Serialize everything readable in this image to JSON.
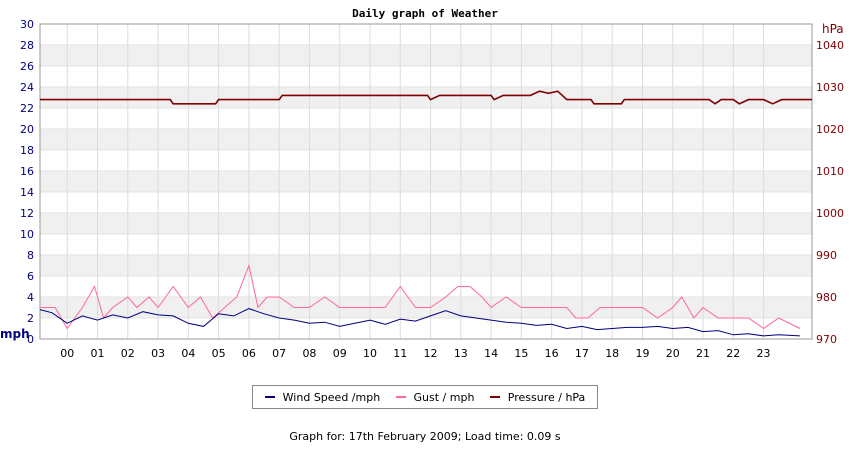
{
  "chart_data": {
    "type": "line",
    "title": "Daily graph of Weather",
    "y_left": {
      "unit": "mph",
      "min": 0,
      "max": 30,
      "ticks": [
        0,
        2,
        4,
        6,
        8,
        10,
        12,
        14,
        16,
        18,
        20,
        22,
        24,
        26,
        28,
        30
      ]
    },
    "y_right": {
      "unit": "hPa",
      "min": 970,
      "max": 1045,
      "ticks": [
        970,
        980,
        990,
        1000,
        1010,
        1020,
        1030,
        1040
      ]
    },
    "x_ticks": [
      "00",
      "01",
      "02",
      "03",
      "04",
      "05",
      "06",
      "07",
      "08",
      "09",
      "10",
      "11",
      "12",
      "13",
      "14",
      "15",
      "16",
      "17",
      "18",
      "19",
      "20",
      "21",
      "22",
      "23"
    ],
    "x_range_hours": [
      -0.9,
      24.6
    ],
    "grid": true,
    "legend_position": "bottom",
    "series": [
      {
        "name": "Wind Speed /mph",
        "color": "#00007f",
        "axis": "left",
        "points": [
          [
            -0.9,
            2.8
          ],
          [
            -0.5,
            2.5
          ],
          [
            0,
            1.5
          ],
          [
            0.5,
            2.2
          ],
          [
            1.0,
            1.8
          ],
          [
            1.5,
            2.3
          ],
          [
            2.0,
            2.0
          ],
          [
            2.5,
            2.6
          ],
          [
            3.0,
            2.3
          ],
          [
            3.5,
            2.2
          ],
          [
            4.0,
            1.5
          ],
          [
            4.5,
            1.2
          ],
          [
            5.0,
            2.4
          ],
          [
            5.5,
            2.2
          ],
          [
            6.0,
            2.9
          ],
          [
            6.5,
            2.4
          ],
          [
            7.0,
            2.0
          ],
          [
            7.5,
            1.8
          ],
          [
            8.0,
            1.5
          ],
          [
            8.5,
            1.6
          ],
          [
            9.0,
            1.2
          ],
          [
            9.5,
            1.5
          ],
          [
            10.0,
            1.8
          ],
          [
            10.5,
            1.4
          ],
          [
            11.0,
            1.9
          ],
          [
            11.5,
            1.7
          ],
          [
            12.0,
            2.2
          ],
          [
            12.5,
            2.7
          ],
          [
            13.0,
            2.2
          ],
          [
            13.5,
            2.0
          ],
          [
            14.0,
            1.8
          ],
          [
            14.5,
            1.6
          ],
          [
            15.0,
            1.5
          ],
          [
            15.5,
            1.3
          ],
          [
            16.0,
            1.4
          ],
          [
            16.5,
            1.0
          ],
          [
            17.0,
            1.2
          ],
          [
            17.5,
            0.9
          ],
          [
            18.0,
            1.0
          ],
          [
            18.5,
            1.1
          ],
          [
            19.0,
            1.1
          ],
          [
            19.5,
            1.2
          ],
          [
            20.0,
            1.0
          ],
          [
            20.5,
            1.1
          ],
          [
            21.0,
            0.7
          ],
          [
            21.5,
            0.8
          ],
          [
            22.0,
            0.4
          ],
          [
            22.5,
            0.5
          ],
          [
            23.0,
            0.3
          ],
          [
            23.5,
            0.4
          ],
          [
            24.2,
            0.3
          ]
        ]
      },
      {
        "name": "Gust / mph",
        "color": "#ff6699",
        "axis": "left",
        "points": [
          [
            -0.9,
            3
          ],
          [
            -0.4,
            3
          ],
          [
            0,
            1
          ],
          [
            0.5,
            3
          ],
          [
            0.9,
            5
          ],
          [
            1.2,
            2
          ],
          [
            1.5,
            3
          ],
          [
            2.0,
            4
          ],
          [
            2.3,
            3
          ],
          [
            2.7,
            4
          ],
          [
            3.0,
            3
          ],
          [
            3.5,
            5
          ],
          [
            4.0,
            3
          ],
          [
            4.4,
            4
          ],
          [
            4.8,
            2
          ],
          [
            5.2,
            3
          ],
          [
            5.6,
            4
          ],
          [
            6.0,
            7
          ],
          [
            6.3,
            3
          ],
          [
            6.6,
            4
          ],
          [
            7.0,
            4
          ],
          [
            7.5,
            3
          ],
          [
            8.0,
            3
          ],
          [
            8.5,
            4
          ],
          [
            9.0,
            3
          ],
          [
            9.5,
            3
          ],
          [
            10.0,
            3
          ],
          [
            10.5,
            3
          ],
          [
            11.0,
            5
          ],
          [
            11.5,
            3
          ],
          [
            12.0,
            3
          ],
          [
            12.5,
            4
          ],
          [
            12.9,
            5
          ],
          [
            13.3,
            5
          ],
          [
            13.7,
            4
          ],
          [
            14.0,
            3
          ],
          [
            14.5,
            4
          ],
          [
            15.0,
            3
          ],
          [
            15.5,
            3
          ],
          [
            16.0,
            3
          ],
          [
            16.5,
            3
          ],
          [
            16.8,
            2
          ],
          [
            17.2,
            2
          ],
          [
            17.6,
            3
          ],
          [
            18.0,
            3
          ],
          [
            18.5,
            3
          ],
          [
            19.0,
            3
          ],
          [
            19.5,
            2
          ],
          [
            20.0,
            3
          ],
          [
            20.3,
            4
          ],
          [
            20.7,
            2
          ],
          [
            21.0,
            3
          ],
          [
            21.5,
            2
          ],
          [
            22.0,
            2
          ],
          [
            22.5,
            2
          ],
          [
            23.0,
            1
          ],
          [
            23.5,
            2
          ],
          [
            24.2,
            1
          ]
        ]
      },
      {
        "name": "Pressure / hPa",
        "color": "#800000",
        "axis": "right",
        "points": [
          [
            -0.9,
            1027
          ],
          [
            3.4,
            1027
          ],
          [
            3.5,
            1026
          ],
          [
            4.9,
            1026
          ],
          [
            5.0,
            1027
          ],
          [
            7.0,
            1027
          ],
          [
            7.1,
            1028
          ],
          [
            11.9,
            1028
          ],
          [
            12.0,
            1027
          ],
          [
            12.3,
            1028
          ],
          [
            14.0,
            1028
          ],
          [
            14.1,
            1027
          ],
          [
            14.4,
            1028
          ],
          [
            15.3,
            1028
          ],
          [
            15.6,
            1029
          ],
          [
            15.9,
            1028.5
          ],
          [
            16.2,
            1029
          ],
          [
            16.5,
            1027
          ],
          [
            17.3,
            1027
          ],
          [
            17.4,
            1026
          ],
          [
            18.3,
            1026
          ],
          [
            18.4,
            1027
          ],
          [
            21.2,
            1027
          ],
          [
            21.4,
            1026
          ],
          [
            21.6,
            1027
          ],
          [
            22.0,
            1027
          ],
          [
            22.2,
            1026
          ],
          [
            22.5,
            1027
          ],
          [
            23.0,
            1027
          ],
          [
            23.3,
            1026
          ],
          [
            23.6,
            1027
          ],
          [
            24.6,
            1027
          ]
        ]
      }
    ]
  },
  "legend": {
    "items": [
      {
        "label": "Wind Speed /mph",
        "color": "#00007f"
      },
      {
        "label": "Gust / mph",
        "color": "#ff6699"
      },
      {
        "label": "Pressure / hPa",
        "color": "#800000"
      }
    ]
  },
  "footer": {
    "text": "Graph for: 17th February 2009; Load time: 0.09 s"
  }
}
